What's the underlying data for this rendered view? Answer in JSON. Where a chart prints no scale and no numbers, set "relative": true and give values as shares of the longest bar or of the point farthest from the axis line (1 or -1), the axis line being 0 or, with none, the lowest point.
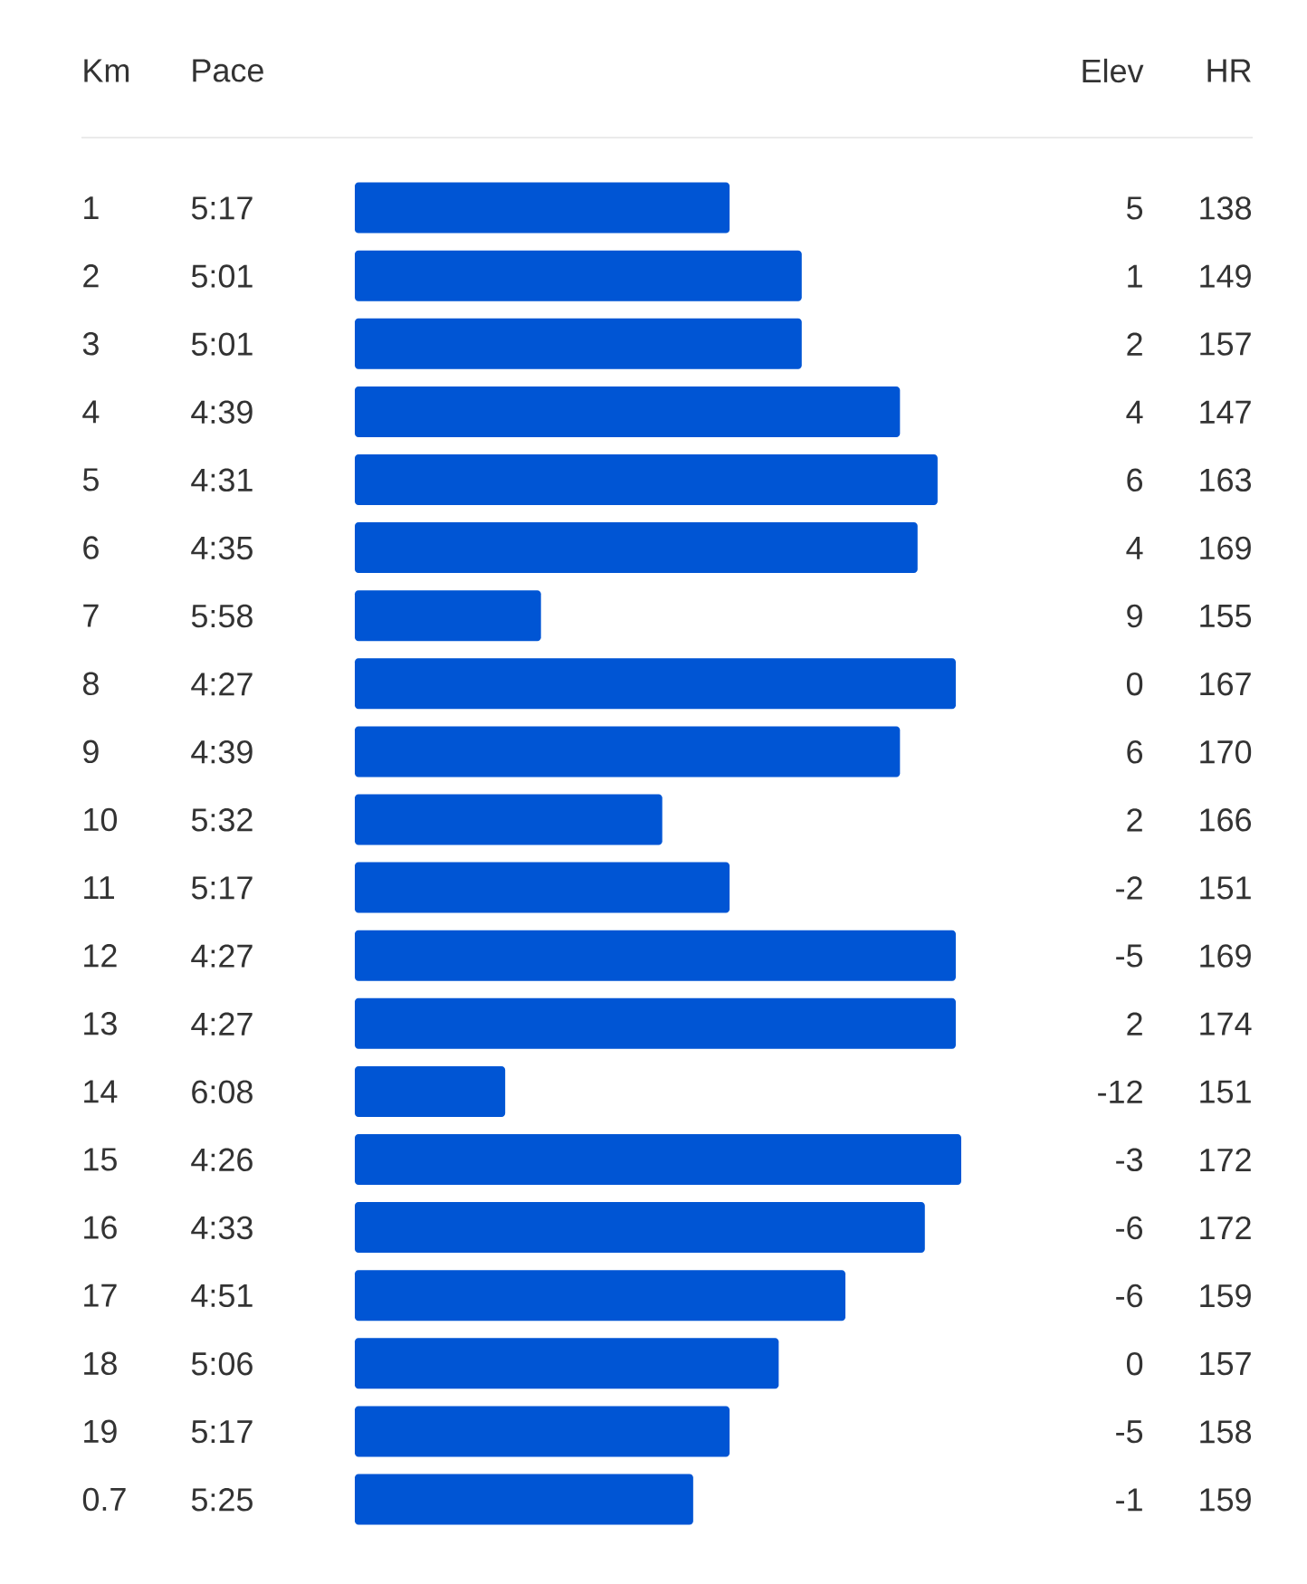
{
  "chart_data": [
    {
      "type": "bar",
      "orientation": "horizontal",
      "relative": true,
      "ylabel": "Km",
      "color": "#0055d4",
      "categories": [
        "1",
        "2",
        "3",
        "4",
        "5",
        "6",
        "7",
        "8",
        "9",
        "10",
        "11",
        "12",
        "13",
        "14",
        "15",
        "16",
        "17",
        "18",
        "19",
        "0.7"
      ],
      "values": [
        0.618,
        0.737,
        0.737,
        0.899,
        0.961,
        0.928,
        0.307,
        0.991,
        0.899,
        0.507,
        0.618,
        0.991,
        0.991,
        0.248,
        1,
        0.94,
        0.809,
        0.699,
        0.618,
        0.558
      ]
    },
    {
      "type": "other",
      "title": "Pace",
      "value_labels": [
        "5:17",
        "5:01",
        "5:01",
        "4:39",
        "4:31",
        "4:35",
        "5:58",
        "4:27",
        "4:39",
        "5:32",
        "5:17",
        "4:27",
        "4:27",
        "6:08",
        "4:26",
        "4:33",
        "4:51",
        "5:06",
        "5:17",
        "5:25"
      ]
    },
    {
      "type": "other",
      "title": "Elev",
      "data_labels": true,
      "values": [
        5,
        1,
        2,
        4,
        6,
        4,
        9,
        0,
        6,
        2,
        -2,
        -5,
        2,
        -12,
        -3,
        -6,
        -6,
        0,
        -5,
        -1
      ]
    },
    {
      "type": "other",
      "title": "HR",
      "data_labels": true,
      "values": [
        138,
        149,
        157,
        147,
        163,
        169,
        155,
        167,
        170,
        166,
        151,
        169,
        174,
        151,
        172,
        172,
        159,
        157,
        158,
        159
      ]
    }
  ]
}
